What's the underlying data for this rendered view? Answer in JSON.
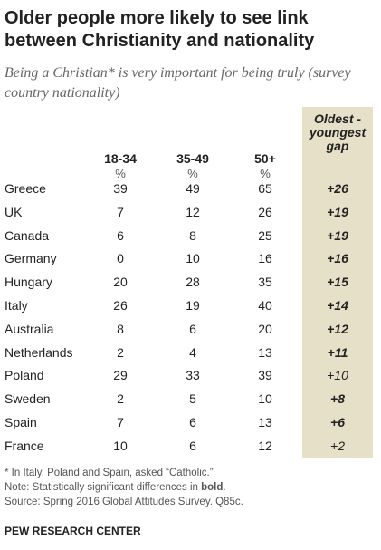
{
  "title": "Older people more likely to see link between Christianity and nationality",
  "subtitle": "Being a Christian* is very important for being truly (survey country nationality)",
  "table": {
    "columns": [
      "18-34",
      "35-49",
      "50+"
    ],
    "units": [
      "%",
      "%",
      "%"
    ],
    "gap_header": "Oldest - youngest gap",
    "rows": [
      {
        "country": "Greece",
        "values": [
          39,
          49,
          65
        ],
        "gap": "+26",
        "significant": true
      },
      {
        "country": "UK",
        "values": [
          7,
          12,
          26
        ],
        "gap": "+19",
        "significant": true
      },
      {
        "country": "Canada",
        "values": [
          6,
          8,
          25
        ],
        "gap": "+19",
        "significant": true
      },
      {
        "country": "Germany",
        "values": [
          0,
          10,
          16
        ],
        "gap": "+16",
        "significant": true
      },
      {
        "country": "Hungary",
        "values": [
          20,
          28,
          35
        ],
        "gap": "+15",
        "significant": true
      },
      {
        "country": "Italy",
        "values": [
          26,
          19,
          40
        ],
        "gap": "+14",
        "significant": true
      },
      {
        "country": "Australia",
        "values": [
          8,
          6,
          20
        ],
        "gap": "+12",
        "significant": true
      },
      {
        "country": "Netherlands",
        "values": [
          2,
          4,
          13
        ],
        "gap": "+11",
        "significant": true
      },
      {
        "country": "Poland",
        "values": [
          29,
          33,
          39
        ],
        "gap": "+10",
        "significant": false
      },
      {
        "country": "Sweden",
        "values": [
          2,
          5,
          10
        ],
        "gap": "+8",
        "significant": true
      },
      {
        "country": "Spain",
        "values": [
          7,
          6,
          13
        ],
        "gap": "+6",
        "significant": true
      },
      {
        "country": "France",
        "values": [
          10,
          6,
          12
        ],
        "gap": "+2",
        "significant": false
      }
    ]
  },
  "notes": {
    "asterisk": "* In Italy, Poland and Spain, asked “Catholic.”",
    "note_start": "Note: Statistically significant differences in ",
    "note_bold": "bold",
    "note_end": ".",
    "source": "Source: Spring 2016 Global Attitudes Survey. Q85c."
  },
  "footer": "PEW RESEARCH CENTER"
}
